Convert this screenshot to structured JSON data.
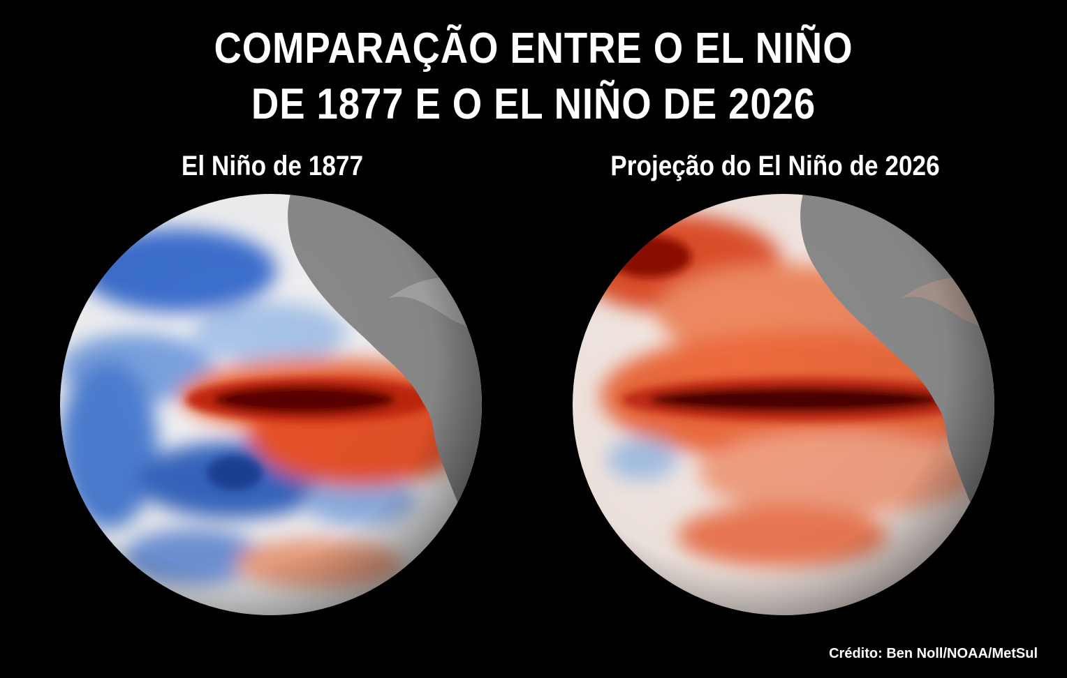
{
  "title": {
    "line1": "COMPARAÇÃO ENTRE O EL NIÑO",
    "line2": "DE 1877 E O EL NIÑO DE 2026"
  },
  "panels": [
    {
      "label": "El Niño de 1877"
    },
    {
      "label": "Projeção do El Niño de 2026"
    }
  ],
  "credit": "Crédito: Ben Noll/NOAA/MetSul",
  "colors": {
    "background": "#000000",
    "warm_dark": "#3a0202",
    "warm": "#e0411a",
    "cool": "#2f64c4",
    "land": "#8a8a8a"
  }
}
